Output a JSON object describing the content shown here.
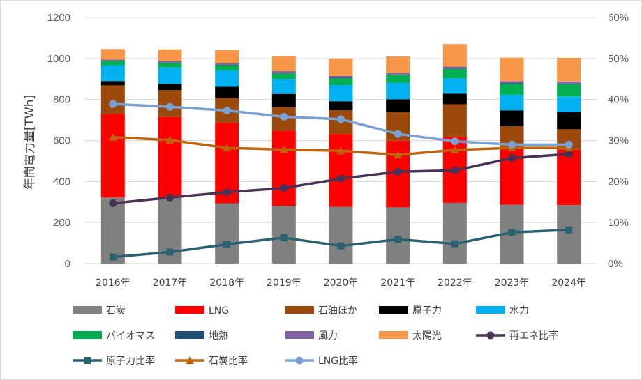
{
  "chart_data": {
    "type": "bar",
    "stacked": true,
    "ylabel": "年間電力量[TWh]",
    "ylim": [
      0,
      1200
    ],
    "yticks": [
      0,
      200,
      400,
      600,
      800,
      1000,
      1200
    ],
    "y2lim": [
      0,
      60
    ],
    "y2ticks": [
      "0%",
      "10%",
      "20%",
      "30%",
      "40%",
      "50%",
      "60%"
    ],
    "grid": true,
    "legend_position": "bottom",
    "categories": [
      "2016年",
      "2017年",
      "2018年",
      "2019年",
      "2020年",
      "2021年",
      "2022年",
      "2023年",
      "2024年"
    ],
    "bar_series": [
      {
        "name": "石炭",
        "color": "#808080",
        "values": [
          322,
          323,
          294,
          281,
          277,
          274,
          296,
          287,
          285
        ]
      },
      {
        "name": "LNG",
        "color": "#ff0000",
        "values": [
          407,
          392,
          393,
          367,
          355,
          325,
          323,
          280,
          270
        ]
      },
      {
        "name": "石油ほか",
        "color": "#9c4a0c",
        "values": [
          140,
          131,
          120,
          115,
          115,
          140,
          158,
          103,
          100
        ]
      },
      {
        "name": "原子力",
        "color": "#000000",
        "values": [
          21,
          31,
          55,
          64,
          44,
          62,
          51,
          77,
          83
        ]
      },
      {
        "name": "水力",
        "color": "#00b0f0",
        "values": [
          77,
          79,
          80,
          73,
          79,
          80,
          75,
          76,
          77
        ]
      },
      {
        "name": "バイオマス",
        "color": "#00b050",
        "values": [
          20,
          22,
          25,
          27,
          33,
          38,
          45,
          54,
          60
        ]
      },
      {
        "name": "地熱",
        "color": "#1f4e79",
        "values": [
          2,
          2,
          2,
          3,
          3,
          3,
          3,
          3,
          3
        ]
      },
      {
        "name": "風力",
        "color": "#8064a2",
        "values": [
          6,
          7,
          8,
          8,
          9,
          9,
          10,
          10,
          10
        ]
      },
      {
        "name": "太陽光",
        "color": "#f79646",
        "values": [
          51,
          57,
          63,
          74,
          85,
          79,
          109,
          114,
          115
        ]
      }
    ],
    "line_series": [
      {
        "name": "再エネ比率",
        "color": "#4a3257",
        "marker": "circle",
        "values": [
          14.7,
          16.1,
          17.4,
          18.4,
          20.7,
          22.4,
          22.7,
          25.7,
          26.7
        ]
      },
      {
        "name": "原子力比率",
        "color": "#2a6272",
        "marker": "square",
        "values": [
          1.6,
          2.8,
          4.7,
          6.3,
          4.3,
          5.9,
          4.8,
          7.6,
          8.2
        ]
      },
      {
        "name": "石炭比率",
        "color": "#c0630f",
        "marker": "triangle",
        "values": [
          30.8,
          30.1,
          28.2,
          27.8,
          27.5,
          26.5,
          27.7,
          28.2,
          28.2
        ]
      },
      {
        "name": "LNG比率",
        "color": "#7aa0d4",
        "marker": "circle",
        "values": [
          38.9,
          38.2,
          37.3,
          35.8,
          35.2,
          31.6,
          29.8,
          29.0,
          29.0
        ]
      }
    ]
  }
}
